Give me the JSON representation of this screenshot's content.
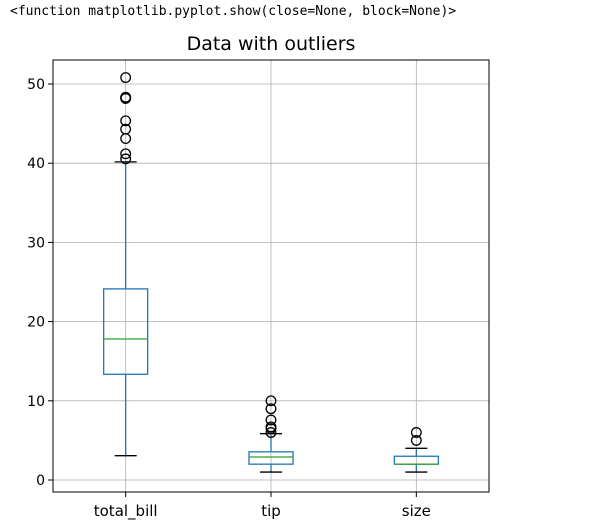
{
  "output_text": "<function matplotlib.pyplot.show(close=None, block=None)>",
  "chart_data": {
    "type": "box",
    "title": "Data with outliers",
    "xlabel": "",
    "ylabel": "",
    "ylim": [
      -1.5,
      53.5
    ],
    "yticks": [
      "0",
      "10",
      "20",
      "30",
      "40",
      "50"
    ],
    "grid": true,
    "categories": [
      "total_bill",
      "tip",
      "size"
    ],
    "boxes": [
      {
        "name": "total_bill",
        "whisker_low": 3.07,
        "q1": 13.35,
        "median": 17.8,
        "q3": 24.13,
        "whisker_high": 40.17,
        "outliers": [
          40.55,
          41.19,
          43.11,
          44.3,
          45.35,
          48.17,
          48.27,
          48.33,
          50.81
        ]
      },
      {
        "name": "tip",
        "whisker_low": 1.0,
        "q1": 2.0,
        "median": 2.9,
        "q3": 3.56,
        "whisker_high": 5.85,
        "outliers": [
          6.0,
          6.5,
          6.7,
          7.58,
          9.0,
          10.0
        ]
      },
      {
        "name": "size",
        "whisker_low": 1,
        "q1": 2,
        "median": 2,
        "q3": 3,
        "whisker_high": 4,
        "outliers": [
          5,
          6
        ]
      }
    ],
    "colors": {
      "box": "#1f77b4",
      "median": "#2ca02c",
      "whisker_cap": "#000000",
      "grid": "#b0b0b0"
    }
  }
}
